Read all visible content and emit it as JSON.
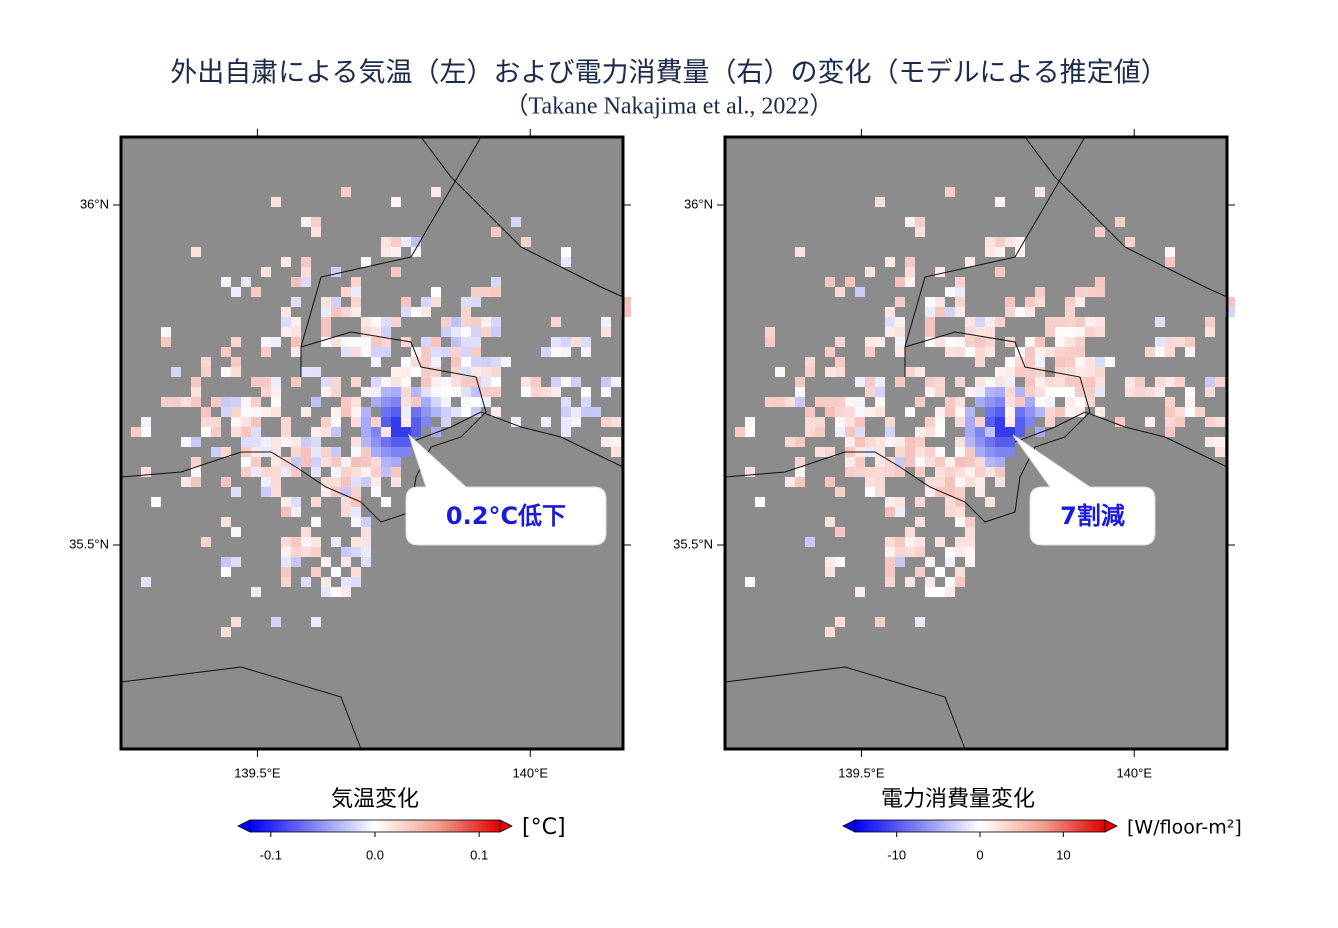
{
  "header": {
    "title": "外出自粛による気温（左）および電力消費量（右）の変化（モデルによる推定値）",
    "subtitle": "（Takane Nakajima et al., 2022）"
  },
  "maps": [
    {
      "xlim": [
        139.25,
        140.17
      ],
      "ylim": [
        35.2,
        36.1
      ],
      "xticks": [
        {
          "value": 139.5,
          "label": "139.5°E"
        },
        {
          "value": 140,
          "label": "140°E"
        }
      ],
      "yticks": [
        {
          "value": 36,
          "label": "36°N"
        },
        {
          "value": 35.5,
          "label": "35.5°N"
        }
      ],
      "colorbar": {
        "label": "気温変化",
        "unit": "[°C]",
        "lim": [
          -0.12,
          0.12
        ],
        "ticks": [
          -0.1,
          {
            "value": 0,
            "label": "0.0"
          },
          0.1
        ]
      },
      "callout": "0.2°C低下"
    },
    {
      "xlim": [
        139.25,
        140.17
      ],
      "ylim": [
        35.2,
        36.1
      ],
      "xticks": [
        {
          "value": 139.5,
          "label": "139.5°E"
        },
        {
          "value": 140,
          "label": "140°E"
        }
      ],
      "yticks": [
        {
          "value": 36,
          "label": "36°N"
        },
        {
          "value": 35.5,
          "label": "35.5°N"
        }
      ],
      "colorbar": {
        "label": "電力消費量変化",
        "unit": "[W/floor-m²]",
        "lim": [
          -15,
          15
        ],
        "ticks": [
          -10,
          0,
          10
        ]
      },
      "callout": "7割減"
    }
  ]
}
